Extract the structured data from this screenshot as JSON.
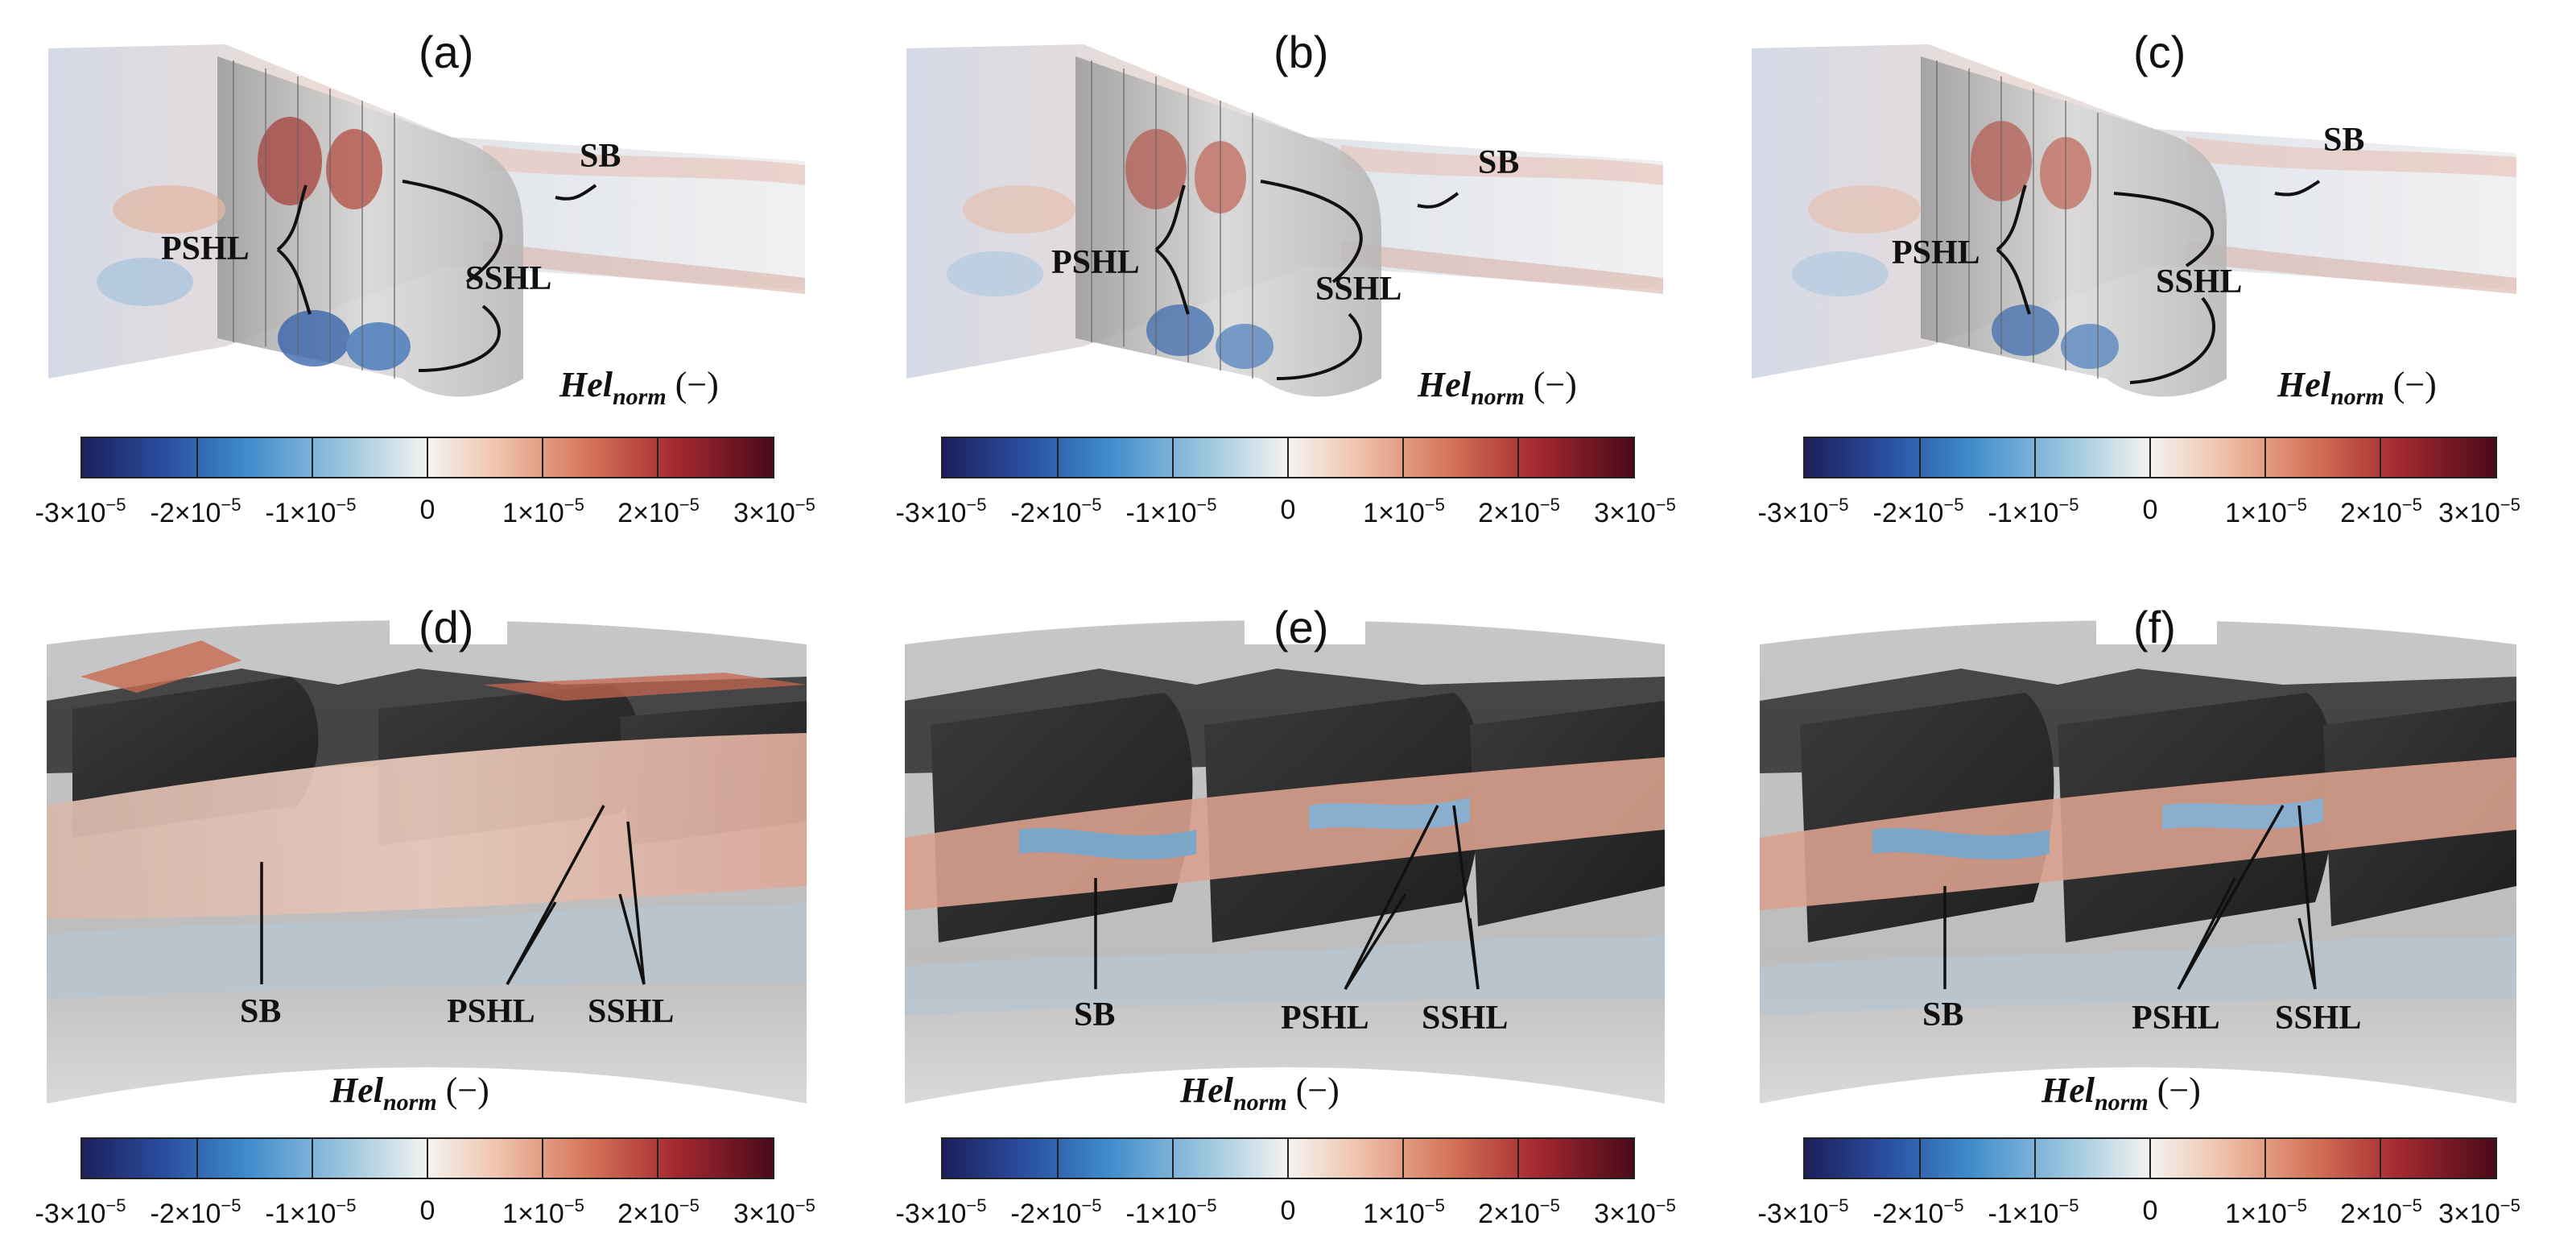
{
  "colorbar": {
    "variable": "Hel",
    "subscript": "norm",
    "unit": "(−)",
    "ticks": [
      {
        "base": "-3×10",
        "exp": "−5"
      },
      {
        "base": "-2×10",
        "exp": "−5"
      },
      {
        "base": "-1×10",
        "exp": "−5"
      },
      {
        "base": "0",
        "exp": ""
      },
      {
        "base": "1×10",
        "exp": "−5"
      },
      {
        "base": "2×10",
        "exp": "−5"
      },
      {
        "base": "3×10",
        "exp": "−5"
      }
    ],
    "colors": [
      "#1d1f5a",
      "#2a4fa0",
      "#3f8ccc",
      "#a9cde0",
      "#f4f3f1",
      "#efc4ad",
      "#d6765a",
      "#a52930",
      "#4a0a1a"
    ]
  },
  "panels": [
    {
      "letter": "(a)",
      "labels": {
        "pshl": "PSHL",
        "sshl": "SSHL",
        "sb": "SB"
      }
    },
    {
      "letter": "(b)",
      "labels": {
        "pshl": "PSHL",
        "sshl": "SSHL",
        "sb": "SB"
      }
    },
    {
      "letter": "(c)",
      "labels": {
        "pshl": "PSHL",
        "sshl": "SSHL",
        "sb": "SB"
      }
    },
    {
      "letter": "(d)",
      "labels": {
        "pshl": "PSHL",
        "sshl": "SSHL",
        "sb": "SB"
      }
    },
    {
      "letter": "(e)",
      "labels": {
        "pshl": "PSHL",
        "sshl": "SSHL",
        "sb": "SB"
      }
    },
    {
      "letter": "(f)",
      "labels": {
        "pshl": "PSHL",
        "sshl": "SSHL",
        "sb": "SB"
      }
    }
  ]
}
